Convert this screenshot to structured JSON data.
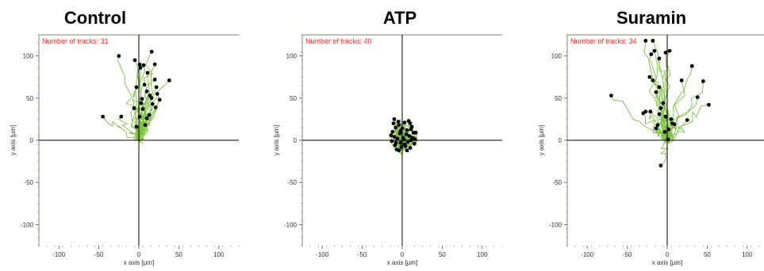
{
  "colors": {
    "track": "#7cc242",
    "endpoint": "#000000",
    "annotation": "#e8302a",
    "frame": "#a09b7e",
    "axes": "#000000"
  },
  "chart_data": [
    {
      "type": "scatter",
      "title": "Control",
      "annotation": "Number of tracks: 31",
      "xlabel": "x axis [µm]",
      "ylabel": "y axis [µm]",
      "xlim": [
        -125,
        125
      ],
      "ylim": [
        -125,
        125
      ],
      "xticks": [
        -100,
        -50,
        0,
        50,
        100
      ],
      "yticks": [
        100,
        50,
        0,
        -50,
        -100
      ],
      "track_count": 31,
      "end_points": [
        [
          -45,
          28
        ],
        [
          -25,
          100
        ],
        [
          -5,
          95
        ],
        [
          1,
          90
        ],
        [
          6,
          89
        ],
        [
          16,
          105
        ],
        [
          20,
          90
        ],
        [
          38,
          71
        ],
        [
          2,
          86
        ],
        [
          11,
          80
        ],
        [
          -3,
          63
        ],
        [
          7,
          66
        ],
        [
          20,
          72
        ],
        [
          10,
          58
        ],
        [
          22,
          63
        ],
        [
          23,
          55
        ],
        [
          16,
          50
        ],
        [
          26,
          48
        ],
        [
          21,
          39
        ],
        [
          3,
          44
        ],
        [
          -6,
          38
        ],
        [
          1,
          28
        ],
        [
          -22,
          28
        ],
        [
          5,
          37
        ],
        [
          17,
          43
        ],
        [
          8,
          18
        ],
        [
          10,
          26
        ],
        [
          13,
          30
        ],
        [
          -3,
          16
        ],
        [
          14,
          53
        ],
        [
          4,
          49
        ]
      ]
    },
    {
      "type": "scatter",
      "title": "ATP",
      "annotation": "Number of tracks: 40",
      "xlabel": "x axis [µm]",
      "ylabel": "y axis [µm]",
      "xlim": [
        -125,
        125
      ],
      "ylim": [
        -125,
        125
      ],
      "xticks": [
        -100,
        -50,
        0,
        50,
        100
      ],
      "yticks": [
        100,
        50,
        0,
        -50,
        -100
      ],
      "track_count": 40,
      "end_points": [
        [
          -10,
          25
        ],
        [
          -5,
          22
        ],
        [
          3,
          21
        ],
        [
          10,
          20
        ],
        [
          12,
          16
        ],
        [
          -8,
          15
        ],
        [
          0,
          14
        ],
        [
          6,
          12
        ],
        [
          -12,
          10
        ],
        [
          14,
          9
        ],
        [
          17,
          9
        ],
        [
          -3,
          8
        ],
        [
          5,
          7
        ],
        [
          9,
          5
        ],
        [
          -10,
          4
        ],
        [
          -6,
          2
        ],
        [
          2,
          1
        ],
        [
          11,
          0
        ],
        [
          -13,
          -1
        ],
        [
          7,
          -2
        ],
        [
          -2,
          -3
        ],
        [
          15,
          -4
        ],
        [
          -9,
          -6
        ],
        [
          4,
          -7
        ],
        [
          -1,
          -8
        ],
        [
          10,
          -9
        ],
        [
          -7,
          -11
        ],
        [
          -4,
          -12
        ],
        [
          1,
          3
        ],
        [
          13,
          3
        ],
        [
          -11,
          20
        ],
        [
          8,
          23
        ],
        [
          -4,
          18
        ],
        [
          6,
          -12
        ],
        [
          -8,
          -3
        ],
        [
          16,
          1
        ],
        [
          -14,
          6
        ],
        [
          3,
          -5
        ],
        [
          11,
          13
        ],
        [
          -2,
          11
        ]
      ]
    },
    {
      "type": "scatter",
      "title": "Suramin",
      "annotation": "Number of tracks: 34",
      "xlabel": "x axis [µm]",
      "ylabel": "y axis [µm]",
      "xlim": [
        -125,
        125
      ],
      "ylim": [
        -125,
        125
      ],
      "xticks": [
        -100,
        -50,
        0,
        50,
        100
      ],
      "yticks": [
        100,
        50,
        0,
        -50,
        -100
      ],
      "track_count": 34,
      "end_points": [
        [
          -27,
          118
        ],
        [
          -18,
          118
        ],
        [
          -2,
          104
        ],
        [
          3,
          106
        ],
        [
          -16,
          106
        ],
        [
          -20,
          102
        ],
        [
          -10,
          97
        ],
        [
          31,
          88
        ],
        [
          -22,
          75
        ],
        [
          -18,
          71
        ],
        [
          18,
          71
        ],
        [
          45,
          70
        ],
        [
          -10,
          63
        ],
        [
          -14,
          57
        ],
        [
          -70,
          53
        ],
        [
          38,
          51
        ],
        [
          52,
          42
        ],
        [
          -8,
          38
        ],
        [
          -27,
          34
        ],
        [
          -21,
          34
        ],
        [
          -10,
          31
        ],
        [
          -30,
          32
        ],
        [
          -2,
          28
        ],
        [
          5,
          25
        ],
        [
          9,
          19
        ],
        [
          6,
          20
        ],
        [
          -12,
          18
        ],
        [
          2,
          13
        ],
        [
          -3,
          10
        ],
        [
          -14,
          14
        ],
        [
          1,
          1
        ],
        [
          -8,
          -30
        ],
        [
          25,
          24
        ],
        [
          -5,
          44
        ]
      ]
    }
  ]
}
